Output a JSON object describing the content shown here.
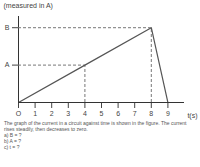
{
  "chart_data": {
    "type": "line",
    "y_label": "(measured in A)",
    "x_label": "t(s)",
    "x": [
      0,
      4,
      8,
      9
    ],
    "values": [
      0,
      1,
      2,
      0
    ],
    "color": "#555555",
    "xlim": [
      0,
      10
    ],
    "xticks": [
      {
        "value": 0,
        "label": "O"
      },
      1,
      2,
      3,
      4,
      5,
      6,
      7,
      8,
      9
    ],
    "ylim": [
      0,
      2.3
    ],
    "yticks": [
      {
        "value": 1,
        "label": "A"
      },
      {
        "value": 2,
        "label": "B"
      }
    ],
    "grid": false,
    "annotations": [
      "The graph of the current in a circuit against time is shown in the figure. The current rises steadily, then decreases to zero.",
      "a) B = ?",
      "b) A = ?",
      "c) t = ?"
    ]
  }
}
